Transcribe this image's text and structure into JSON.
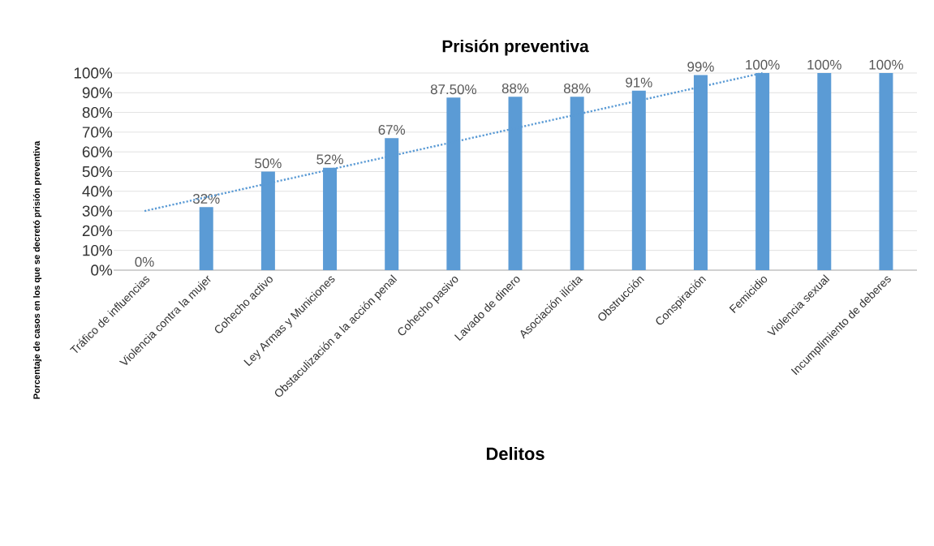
{
  "chart_data": {
    "type": "bar",
    "title": "Prisión preventiva",
    "xlabel": "Delitos",
    "ylabel": "Porcentaje de casos en los que se decretó prisión preventiva",
    "categories": [
      "Tráfico de influencias",
      "Violencia contra la mujer",
      "Cohecho activo",
      "Ley Armas y Municiones",
      "Obstaculización a la acción penal",
      "Cohecho pasivo",
      "Lavado de dinero",
      "Asociación ilícita",
      "Obstrucción",
      "Conspiración",
      "Femicidio",
      "Violencia sexual",
      "Incumplimiento de deberes"
    ],
    "series": [
      {
        "color": "#5b9bd5",
        "values": [
          0,
          32,
          50,
          52,
          67,
          87.5,
          88,
          88,
          91,
          99,
          100,
          100,
          100
        ],
        "value_labels": [
          "0%",
          "32%",
          "50%",
          "52%",
          "67%",
          "87.50%",
          "88%",
          "88%",
          "91%",
          "99%",
          "100%",
          "100%",
          "100%"
        ]
      },
      {
        "type": "line",
        "color": "#5b9bd5",
        "line_style": "dotted",
        "x": [
          "Tráfico de influencias",
          "Femicidio"
        ],
        "values": [
          30,
          100
        ]
      }
    ],
    "ylim": [
      0,
      100
    ],
    "yticks": [
      {
        "value": 0,
        "label": "0%"
      },
      {
        "value": 10,
        "label": "10%"
      },
      {
        "value": 20,
        "label": "20%"
      },
      {
        "value": 30,
        "label": "30%"
      },
      {
        "value": 40,
        "label": "40%"
      },
      {
        "value": 50,
        "label": "50%"
      },
      {
        "value": 60,
        "label": "60%"
      },
      {
        "value": 70,
        "label": "70%"
      },
      {
        "value": 80,
        "label": "80%"
      },
      {
        "value": 90,
        "label": "90%"
      },
      {
        "value": 100,
        "label": "100%"
      }
    ],
    "grid": "y"
  }
}
